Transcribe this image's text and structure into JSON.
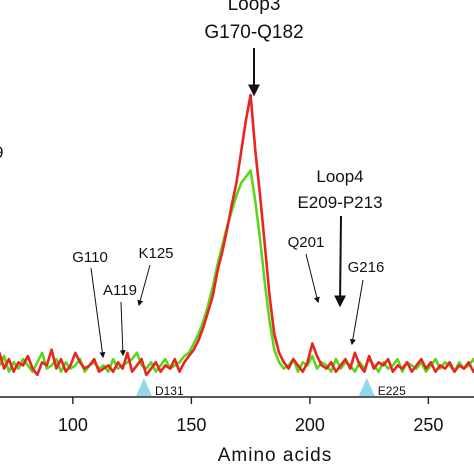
{
  "chart_data": {
    "type": "line",
    "title": "",
    "xlabel": "Amino acids",
    "ylabel": "",
    "xlim": [
      55,
      275
    ],
    "ylim": [
      0,
      1
    ],
    "grid": false,
    "xticks": [
      100,
      150,
      200,
      250
    ],
    "edge_fragment": "9",
    "series": [
      {
        "color": "#e8251f",
        "x": [
          55,
          57,
          59,
          61,
          63,
          65,
          67,
          69,
          71,
          73,
          75,
          77,
          79,
          81,
          83,
          85,
          87,
          89,
          91,
          93,
          95,
          97,
          99,
          101,
          103,
          105,
          107,
          109,
          111,
          113,
          115,
          117,
          119,
          121,
          123,
          125,
          127,
          129,
          131,
          133,
          135,
          137,
          139,
          141,
          143,
          145,
          147,
          149,
          151,
          153,
          155,
          157,
          159,
          161,
          163,
          165,
          167,
          169,
          171,
          173,
          175,
          177,
          179,
          181,
          183,
          185,
          187,
          189,
          191,
          193,
          195,
          197,
          199,
          201,
          203,
          205,
          207,
          209,
          211,
          213,
          215,
          217,
          219,
          221,
          223,
          225,
          227,
          229,
          231,
          233,
          235,
          237,
          239,
          241,
          243,
          245,
          247,
          249,
          251,
          253,
          255,
          257,
          259,
          261,
          263,
          265,
          267,
          269,
          271,
          273,
          275
        ],
        "values": [
          0.14,
          0.12,
          0.16,
          0.13,
          0.15,
          0.1,
          0.14,
          0.18,
          0.13,
          0.16,
          0.12,
          0.15,
          0.14,
          0.17,
          0.13,
          0.11,
          0.15,
          0.14,
          0.19,
          0.13,
          0.16,
          0.12,
          0.14,
          0.18,
          0.15,
          0.13,
          0.14,
          0.16,
          0.12,
          0.13,
          0.14,
          0.12,
          0.15,
          0.13,
          0.18,
          0.12,
          0.14,
          0.16,
          0.11,
          0.13,
          0.15,
          0.12,
          0.14,
          0.13,
          0.16,
          0.12,
          0.15,
          0.17,
          0.19,
          0.22,
          0.26,
          0.31,
          0.36,
          0.44,
          0.5,
          0.57,
          0.65,
          0.72,
          0.82,
          0.92,
          1.0,
          0.82,
          0.68,
          0.52,
          0.36,
          0.24,
          0.18,
          0.15,
          0.13,
          0.16,
          0.14,
          0.12,
          0.15,
          0.21,
          0.17,
          0.14,
          0.13,
          0.15,
          0.12,
          0.14,
          0.16,
          0.13,
          0.18,
          0.14,
          0.12,
          0.17,
          0.13,
          0.15,
          0.14,
          0.16,
          0.12,
          0.14,
          0.13,
          0.15,
          0.12,
          0.14,
          0.16,
          0.13,
          0.15,
          0.12,
          0.14,
          0.13,
          0.15,
          0.12,
          0.14,
          0.13,
          0.15,
          0.12,
          0.14,
          0.13,
          0.15
        ]
      },
      {
        "color": "#5ad61c",
        "x": [
          55,
          57,
          59,
          61,
          63,
          65,
          67,
          69,
          71,
          73,
          75,
          77,
          79,
          81,
          83,
          85,
          87,
          89,
          91,
          93,
          95,
          97,
          99,
          101,
          103,
          105,
          107,
          109,
          111,
          113,
          115,
          117,
          119,
          121,
          123,
          125,
          127,
          129,
          131,
          133,
          135,
          137,
          139,
          141,
          143,
          145,
          147,
          149,
          151,
          153,
          155,
          157,
          159,
          161,
          163,
          165,
          167,
          169,
          171,
          173,
          175,
          177,
          179,
          181,
          183,
          185,
          187,
          189,
          191,
          193,
          195,
          197,
          199,
          201,
          203,
          205,
          207,
          209,
          211,
          213,
          215,
          217,
          219,
          221,
          223,
          225,
          227,
          229,
          231,
          233,
          235,
          237,
          239,
          241,
          243,
          245,
          247,
          249,
          251,
          253,
          255,
          257,
          259,
          261,
          263,
          265,
          267,
          269,
          271,
          273,
          275
        ],
        "values": [
          0.12,
          0.14,
          0.11,
          0.15,
          0.13,
          0.16,
          0.12,
          0.14,
          0.17,
          0.12,
          0.15,
          0.13,
          0.16,
          0.14,
          0.12,
          0.15,
          0.18,
          0.13,
          0.14,
          0.16,
          0.12,
          0.15,
          0.13,
          0.14,
          0.16,
          0.12,
          0.14,
          0.15,
          0.13,
          0.14,
          0.12,
          0.16,
          0.13,
          0.14,
          0.15,
          0.16,
          0.18,
          0.14,
          0.13,
          0.15,
          0.12,
          0.14,
          0.16,
          0.13,
          0.14,
          0.15,
          0.17,
          0.18,
          0.21,
          0.24,
          0.28,
          0.33,
          0.39,
          0.46,
          0.52,
          0.58,
          0.63,
          0.68,
          0.72,
          0.74,
          0.76,
          0.66,
          0.54,
          0.4,
          0.28,
          0.19,
          0.15,
          0.13,
          0.14,
          0.16,
          0.12,
          0.15,
          0.14,
          0.17,
          0.13,
          0.15,
          0.14,
          0.12,
          0.16,
          0.13,
          0.15,
          0.14,
          0.12,
          0.15,
          0.13,
          0.16,
          0.14,
          0.12,
          0.15,
          0.13,
          0.14,
          0.16,
          0.12,
          0.15,
          0.14,
          0.13,
          0.15,
          0.12,
          0.14,
          0.16,
          0.13,
          0.15,
          0.14,
          0.12,
          0.15,
          0.13,
          0.14,
          0.16,
          0.13,
          0.15,
          0.14
        ]
      }
    ],
    "markers": [
      {
        "x": 130,
        "label": "D131",
        "color": "#8fd9ea"
      },
      {
        "x": 224,
        "label": "E225",
        "color": "#8fd9ea"
      }
    ],
    "annotations": [
      {
        "lines": [
          "Loop3",
          "G170-Q182"
        ],
        "target_x": 175
      },
      {
        "lines": [
          "Loop4",
          "E209-P213"
        ],
        "target_x": 211
      },
      {
        "lines": [
          "G110"
        ],
        "target_x": 110
      },
      {
        "lines": [
          "A119"
        ],
        "target_x": 119
      },
      {
        "lines": [
          "K125"
        ],
        "target_x": 125
      },
      {
        "lines": [
          "Q201"
        ],
        "target_x": 201
      },
      {
        "lines": [
          "G216"
        ],
        "target_x": 216
      }
    ]
  }
}
